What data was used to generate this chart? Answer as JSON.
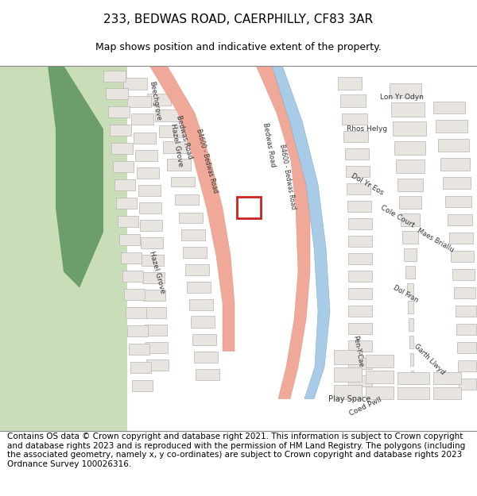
{
  "title": "233, BEDWAS ROAD, CAERPHILLY, CF83 3AR",
  "subtitle": "Map shows position and indicative extent of the property.",
  "footer": "Contains OS data © Crown copyright and database right 2021. This information is subject to Crown copyright and database rights 2023 and is reproduced with the permission of HM Land Registry. The polygons (including the associated geometry, namely x, y co-ordinates) are subject to Crown copyright and database rights 2023 Ordnance Survey 100026316.",
  "title_fontsize": 11,
  "subtitle_fontsize": 9,
  "footer_fontsize": 7.5,
  "map_bg": "#ffffff",
  "green_light": "#c8ddb8",
  "green_dark": "#6b9e6b",
  "road_salmon": "#f0a898",
  "road_outline": "#e08878",
  "water_color": "#a8cce8",
  "water_outline": "#88aac8",
  "building_fill": "#e8e4e0",
  "building_outline": "#b8b4b0",
  "highlight_fill": "none",
  "highlight_outline": "#cc2222",
  "label_color": "#333333",
  "header_bg": "#ffffff",
  "footer_bg": "#ffffff"
}
